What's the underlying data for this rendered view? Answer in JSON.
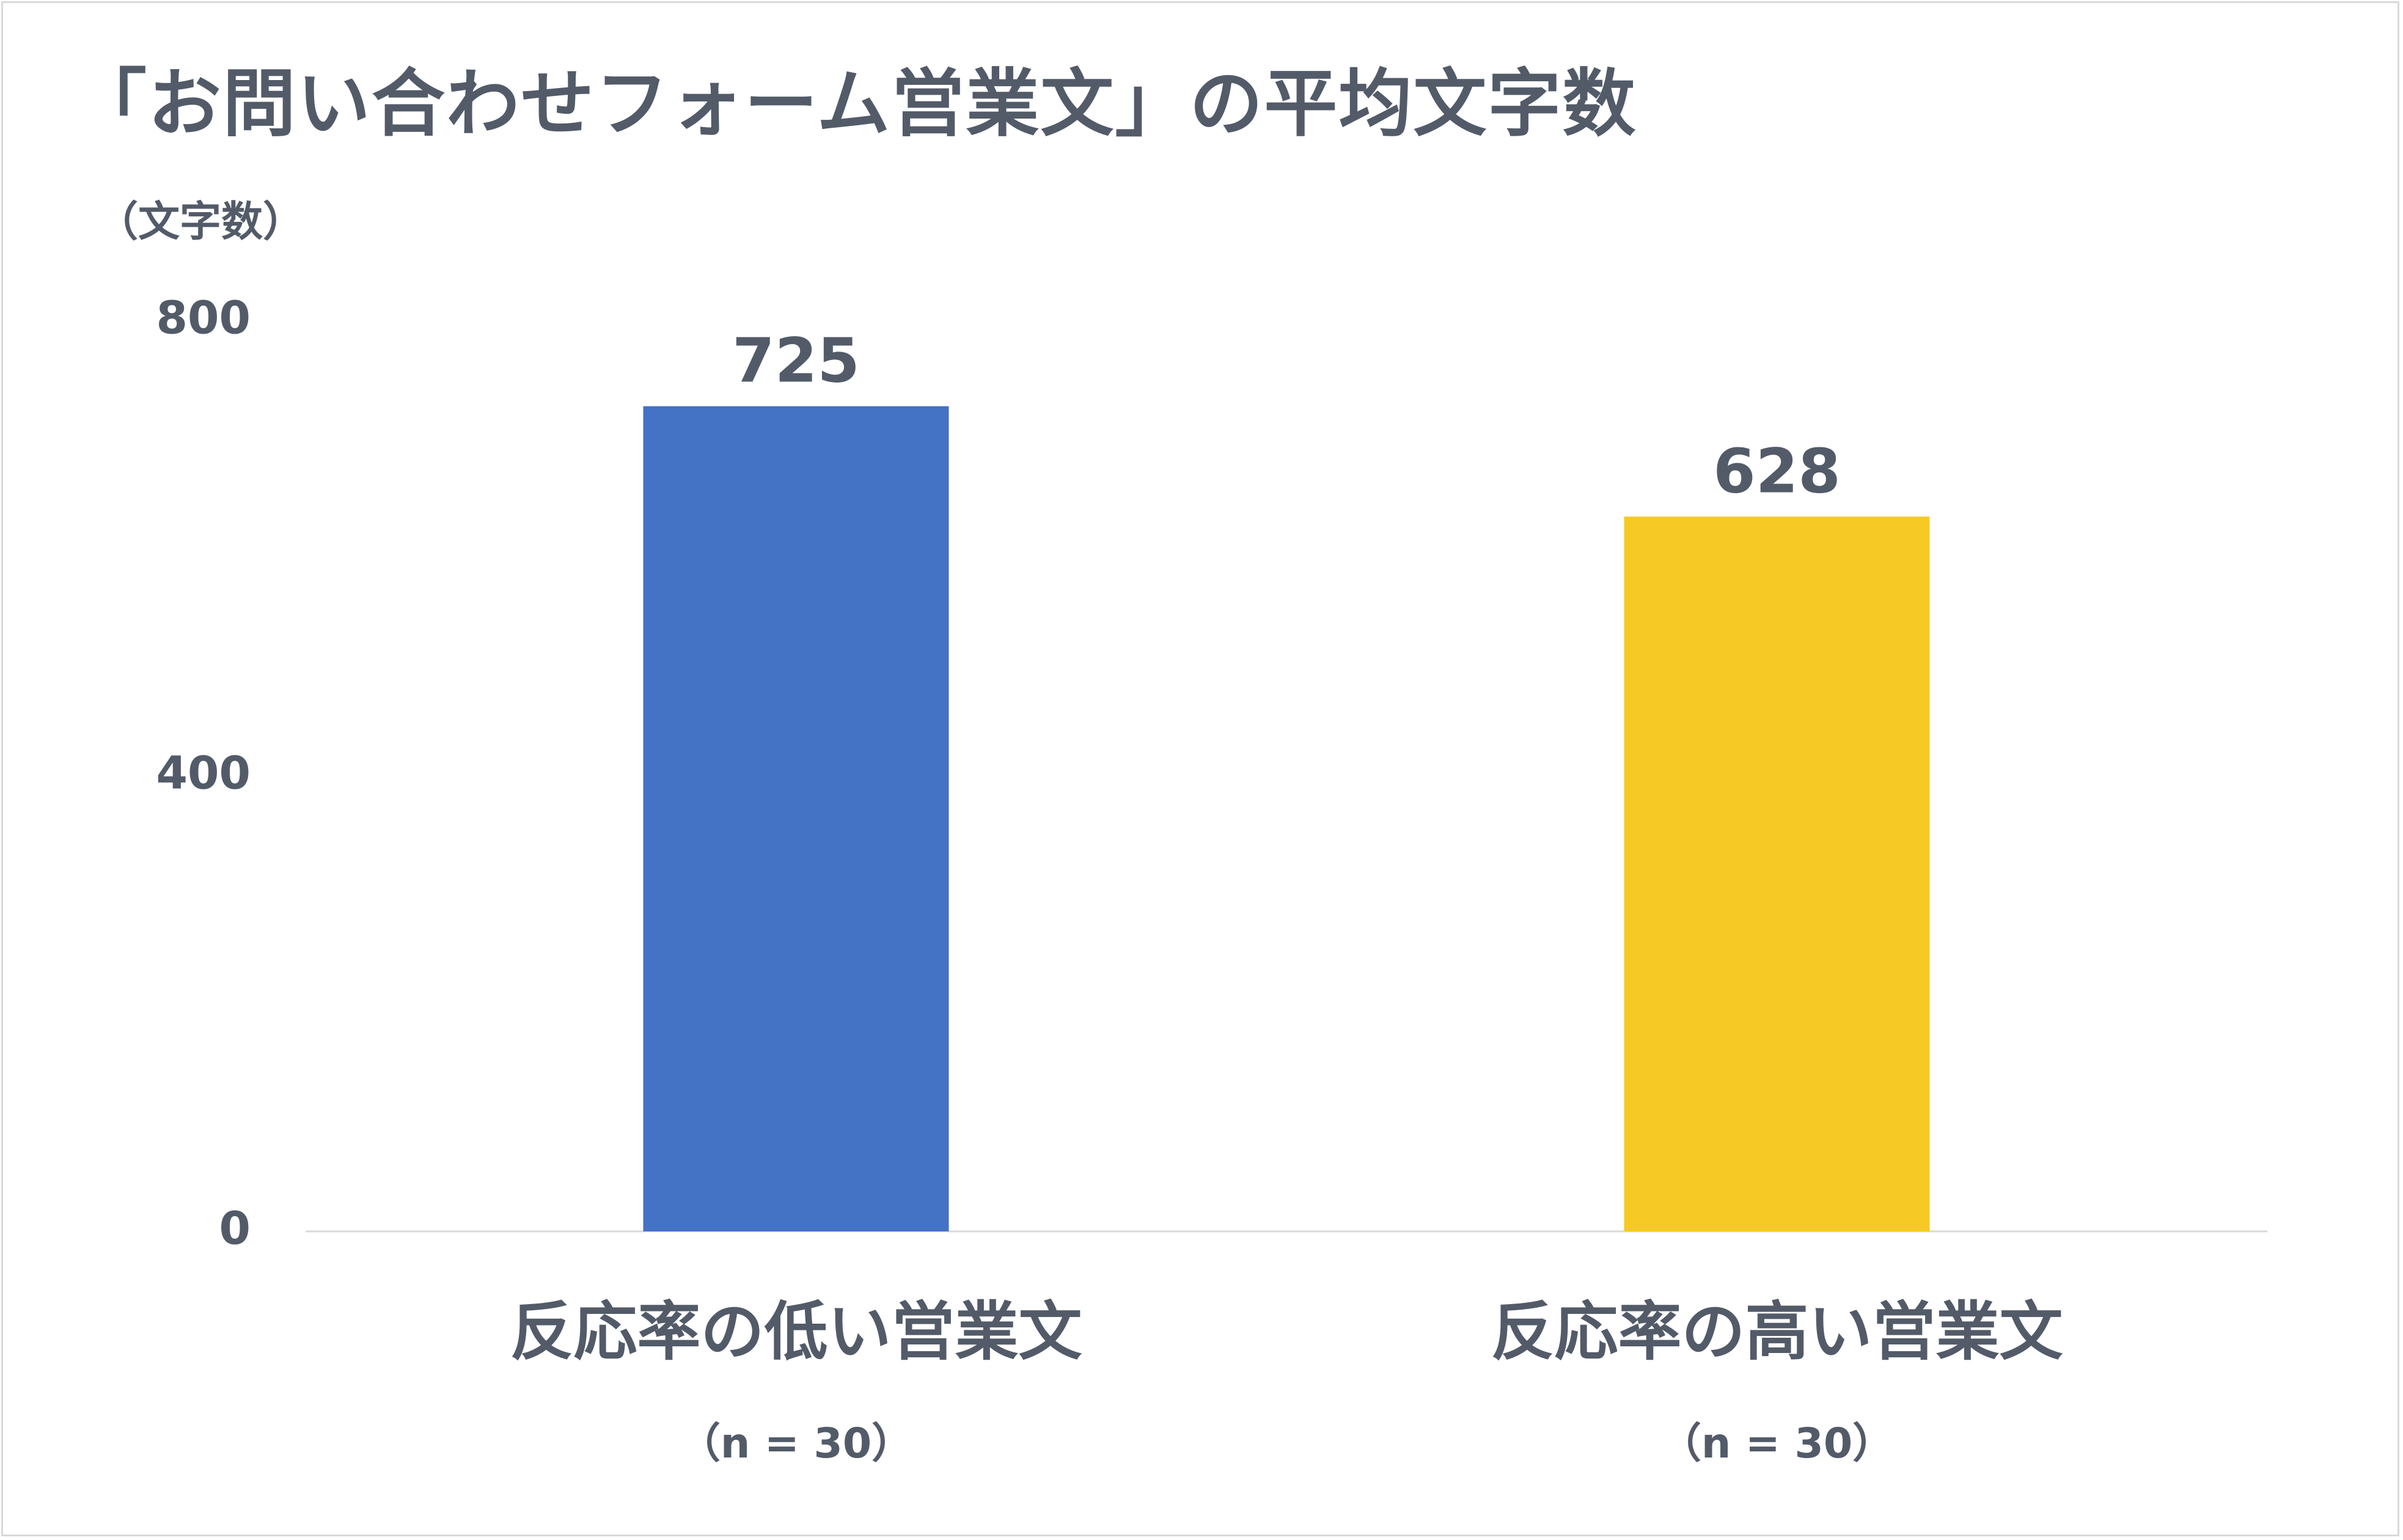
{
  "chart_data": {
    "type": "bar",
    "title": "「お問い合わせフォーム営業文」の平均文字数",
    "ylabel": "（文字数）",
    "ylim": [
      0,
      800
    ],
    "yticks": [
      0,
      400,
      800
    ],
    "categories": [
      "反応率の低い営業文",
      "反応率の高い営業文"
    ],
    "sample_labels": [
      "（n = 30）",
      "（n = 30）"
    ],
    "values": [
      725,
      628
    ],
    "data_labels": [
      "725",
      "628"
    ],
    "bar_colors": [
      "#4472c4",
      "#f7c924"
    ],
    "grid": false,
    "legend": "none"
  },
  "colors": {
    "text": "#535b69",
    "axis_line": "#d9d9d9",
    "frame": "#d9d9d9"
  }
}
